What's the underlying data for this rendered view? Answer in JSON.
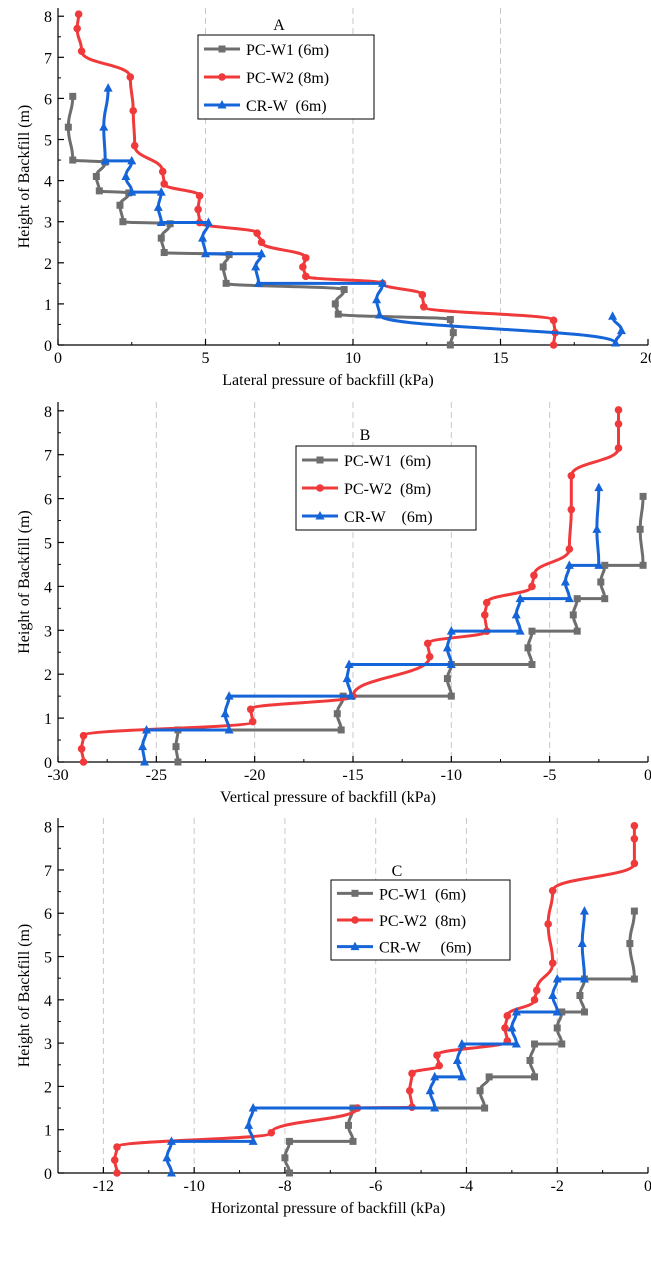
{
  "colors": {
    "PC-W1": "#6e6e6e",
    "PC-W2": "#f0393a",
    "CR-W": "#1565d8"
  },
  "chart_data": [
    {
      "type": "line",
      "panel_label": "A",
      "xlabel": "Lateral pressure of backfill (kPa)",
      "ylabel": "Height of Backfill (m)",
      "xlim": [
        0,
        20
      ],
      "ylim": [
        0,
        8.2
      ],
      "x_ticks": [
        0,
        5,
        10,
        15,
        20
      ],
      "y_ticks": [
        0,
        1,
        2,
        3,
        4,
        5,
        6,
        7,
        8
      ],
      "legend_position": "top-center",
      "series": [
        {
          "name": "PC-W1 (6m)",
          "marker": "square",
          "points": [
            [
              13.3,
              0
            ],
            [
              13.4,
              0.3
            ],
            [
              13.3,
              0.62
            ],
            [
              9.5,
              0.75
            ],
            [
              9.4,
              1.0
            ],
            [
              9.7,
              1.35
            ],
            [
              5.7,
              1.5
            ],
            [
              5.6,
              1.9
            ],
            [
              5.8,
              2.2
            ],
            [
              3.6,
              2.25
            ],
            [
              3.5,
              2.6
            ],
            [
              3.8,
              2.95
            ],
            [
              2.2,
              3.0
            ],
            [
              2.1,
              3.4
            ],
            [
              2.4,
              3.7
            ],
            [
              1.4,
              3.75
            ],
            [
              1.3,
              4.1
            ],
            [
              1.6,
              4.45
            ],
            [
              0.5,
              4.5
            ],
            [
              0.35,
              5.3
            ],
            [
              0.5,
              6.05
            ]
          ]
        },
        {
          "name": "PC-W2 (8m)",
          "marker": "circle",
          "points": [
            [
              16.8,
              0
            ],
            [
              16.85,
              0.3
            ],
            [
              16.8,
              0.6
            ],
            [
              12.4,
              0.93
            ],
            [
              12.35,
              1.22
            ],
            [
              11.0,
              1.5
            ],
            [
              8.4,
              1.67
            ],
            [
              8.3,
              1.9
            ],
            [
              8.4,
              2.12
            ],
            [
              6.9,
              2.5
            ],
            [
              6.75,
              2.72
            ],
            [
              4.8,
              2.98
            ],
            [
              4.75,
              3.3
            ],
            [
              4.8,
              3.63
            ],
            [
              3.6,
              3.92
            ],
            [
              3.55,
              4.22
            ],
            [
              2.6,
              4.85
            ],
            [
              2.55,
              5.7
            ],
            [
              2.45,
              6.52
            ],
            [
              0.8,
              7.15
            ],
            [
              0.65,
              7.7
            ],
            [
              0.7,
              8.05
            ]
          ]
        },
        {
          "name": "CR-W  (6m)",
          "marker": "triangle",
          "points": [
            [
              18.8,
              0.7
            ],
            [
              19.1,
              0.35
            ],
            [
              18.9,
              0.05
            ],
            [
              10.9,
              0.73
            ],
            [
              10.8,
              1.1
            ],
            [
              11.0,
              1.5
            ],
            [
              6.8,
              1.5
            ],
            [
              6.7,
              1.9
            ],
            [
              6.9,
              2.22
            ],
            [
              5.0,
              2.22
            ],
            [
              4.9,
              2.6
            ],
            [
              5.1,
              2.98
            ],
            [
              3.5,
              2.98
            ],
            [
              3.4,
              3.35
            ],
            [
              3.5,
              3.72
            ],
            [
              2.5,
              3.72
            ],
            [
              2.3,
              4.1
            ],
            [
              2.5,
              4.48
            ],
            [
              1.6,
              4.48
            ],
            [
              1.55,
              5.3
            ],
            [
              1.7,
              6.25
            ]
          ]
        }
      ]
    },
    {
      "type": "line",
      "panel_label": "B",
      "xlabel": "Vertical pressure of backfill (kPa)",
      "ylabel": "Height of Backfill (m)",
      "xlim": [
        -30,
        0
      ],
      "ylim": [
        0,
        8.2
      ],
      "x_ticks": [
        -30,
        -25,
        -20,
        -15,
        -10,
        -5,
        0
      ],
      "y_ticks": [
        0,
        1,
        2,
        3,
        4,
        5,
        6,
        7,
        8
      ],
      "legend_position": "top-center",
      "series": [
        {
          "name": "PC-W1  (6m)",
          "marker": "square",
          "points": [
            [
              -23.9,
              0
            ],
            [
              -24.0,
              0.35
            ],
            [
              -23.9,
              0.73
            ],
            [
              -15.6,
              0.73
            ],
            [
              -15.8,
              1.1
            ],
            [
              -15.5,
              1.5
            ],
            [
              -10.0,
              1.5
            ],
            [
              -10.2,
              1.9
            ],
            [
              -10.0,
              2.22
            ],
            [
              -5.9,
              2.22
            ],
            [
              -6.1,
              2.6
            ],
            [
              -5.9,
              2.98
            ],
            [
              -3.6,
              2.98
            ],
            [
              -3.8,
              3.35
            ],
            [
              -3.6,
              3.72
            ],
            [
              -2.2,
              3.72
            ],
            [
              -2.4,
              4.1
            ],
            [
              -2.2,
              4.48
            ],
            [
              -0.25,
              4.48
            ],
            [
              -0.4,
              5.3
            ],
            [
              -0.25,
              6.05
            ]
          ]
        },
        {
          "name": "PC-W2  (8m)",
          "marker": "circle",
          "points": [
            [
              -28.7,
              0
            ],
            [
              -28.8,
              0.3
            ],
            [
              -28.7,
              0.6
            ],
            [
              -20.1,
              0.92
            ],
            [
              -20.2,
              1.2
            ],
            [
              -15.0,
              1.5
            ],
            [
              -11.1,
              2.4
            ],
            [
              -11.2,
              2.7
            ],
            [
              -8.2,
              2.98
            ],
            [
              -8.3,
              3.35
            ],
            [
              -8.2,
              3.63
            ],
            [
              -5.9,
              4.0
            ],
            [
              -5.8,
              4.25
            ],
            [
              -4.0,
              4.85
            ],
            [
              -3.9,
              5.75
            ],
            [
              -3.9,
              6.52
            ],
            [
              -1.5,
              7.15
            ],
            [
              -1.5,
              7.7
            ],
            [
              -1.5,
              8.02
            ]
          ]
        },
        {
          "name": "CR-W    (6m)",
          "marker": "triangle",
          "points": [
            [
              -25.6,
              0
            ],
            [
              -25.7,
              0.35
            ],
            [
              -25.5,
              0.73
            ],
            [
              -21.3,
              0.73
            ],
            [
              -21.5,
              1.1
            ],
            [
              -21.3,
              1.5
            ],
            [
              -15.1,
              1.5
            ],
            [
              -15.3,
              1.9
            ],
            [
              -15.2,
              2.22
            ],
            [
              -10.0,
              2.22
            ],
            [
              -10.2,
              2.6
            ],
            [
              -10.0,
              2.98
            ],
            [
              -6.5,
              2.98
            ],
            [
              -6.7,
              3.35
            ],
            [
              -6.5,
              3.72
            ],
            [
              -4.0,
              3.72
            ],
            [
              -4.2,
              4.1
            ],
            [
              -4.0,
              4.48
            ],
            [
              -2.5,
              4.48
            ],
            [
              -2.6,
              5.3
            ],
            [
              -2.5,
              6.25
            ]
          ]
        }
      ]
    },
    {
      "type": "line",
      "panel_label": "C",
      "xlabel": "Horizontal pressure of backfill (kPa)",
      "ylabel": "Height of Backfill (m)",
      "xlim": [
        -13,
        0
      ],
      "ylim": [
        0,
        8.2
      ],
      "x_ticks": [
        -12,
        -10,
        -8,
        -6,
        -4,
        -2,
        0
      ],
      "y_ticks": [
        0,
        1,
        2,
        3,
        4,
        5,
        6,
        7,
        8
      ],
      "legend_position": "top-right",
      "series": [
        {
          "name": "PC-W1  (6m)",
          "marker": "square",
          "points": [
            [
              -7.9,
              0
            ],
            [
              -8.0,
              0.35
            ],
            [
              -7.9,
              0.73
            ],
            [
              -6.5,
              0.73
            ],
            [
              -6.6,
              1.1
            ],
            [
              -6.5,
              1.5
            ],
            [
              -3.6,
              1.5
            ],
            [
              -3.7,
              1.9
            ],
            [
              -3.5,
              2.22
            ],
            [
              -2.5,
              2.22
            ],
            [
              -2.6,
              2.6
            ],
            [
              -2.5,
              2.98
            ],
            [
              -1.9,
              2.98
            ],
            [
              -2.0,
              3.35
            ],
            [
              -1.9,
              3.72
            ],
            [
              -1.4,
              3.72
            ],
            [
              -1.5,
              4.1
            ],
            [
              -1.4,
              4.48
            ],
            [
              -0.3,
              4.48
            ],
            [
              -0.4,
              5.3
            ],
            [
              -0.3,
              6.05
            ]
          ]
        },
        {
          "name": "PC-W2  (8m)",
          "marker": "circle",
          "points": [
            [
              -11.7,
              0
            ],
            [
              -11.75,
              0.3
            ],
            [
              -11.7,
              0.6
            ],
            [
              -8.3,
              0.93
            ],
            [
              -6.4,
              1.5
            ],
            [
              -5.2,
              1.52
            ],
            [
              -5.25,
              1.9
            ],
            [
              -5.2,
              2.3
            ],
            [
              -4.6,
              2.48
            ],
            [
              -4.65,
              2.72
            ],
            [
              -3.1,
              3.05
            ],
            [
              -3.15,
              3.35
            ],
            [
              -3.1,
              3.63
            ],
            [
              -2.5,
              4.0
            ],
            [
              -2.45,
              4.22
            ],
            [
              -2.1,
              4.85
            ],
            [
              -2.2,
              5.75
            ],
            [
              -2.1,
              6.52
            ],
            [
              -0.3,
              7.15
            ],
            [
              -0.3,
              7.72
            ],
            [
              -0.3,
              8.02
            ]
          ]
        },
        {
          "name": "CR-W     (6m)",
          "marker": "triangle",
          "points": [
            [
              -10.5,
              0
            ],
            [
              -10.6,
              0.35
            ],
            [
              -10.5,
              0.73
            ],
            [
              -8.7,
              0.73
            ],
            [
              -8.8,
              1.1
            ],
            [
              -8.7,
              1.5
            ],
            [
              -4.7,
              1.5
            ],
            [
              -4.8,
              1.9
            ],
            [
              -4.7,
              2.22
            ],
            [
              -4.1,
              2.22
            ],
            [
              -4.2,
              2.6
            ],
            [
              -4.1,
              2.98
            ],
            [
              -2.9,
              2.98
            ],
            [
              -3.0,
              3.35
            ],
            [
              -2.9,
              3.72
            ],
            [
              -2.0,
              3.72
            ],
            [
              -2.1,
              4.1
            ],
            [
              -2.0,
              4.48
            ],
            [
              -1.4,
              4.48
            ],
            [
              -1.45,
              5.3
            ],
            [
              -1.4,
              6.05
            ]
          ]
        }
      ]
    }
  ]
}
